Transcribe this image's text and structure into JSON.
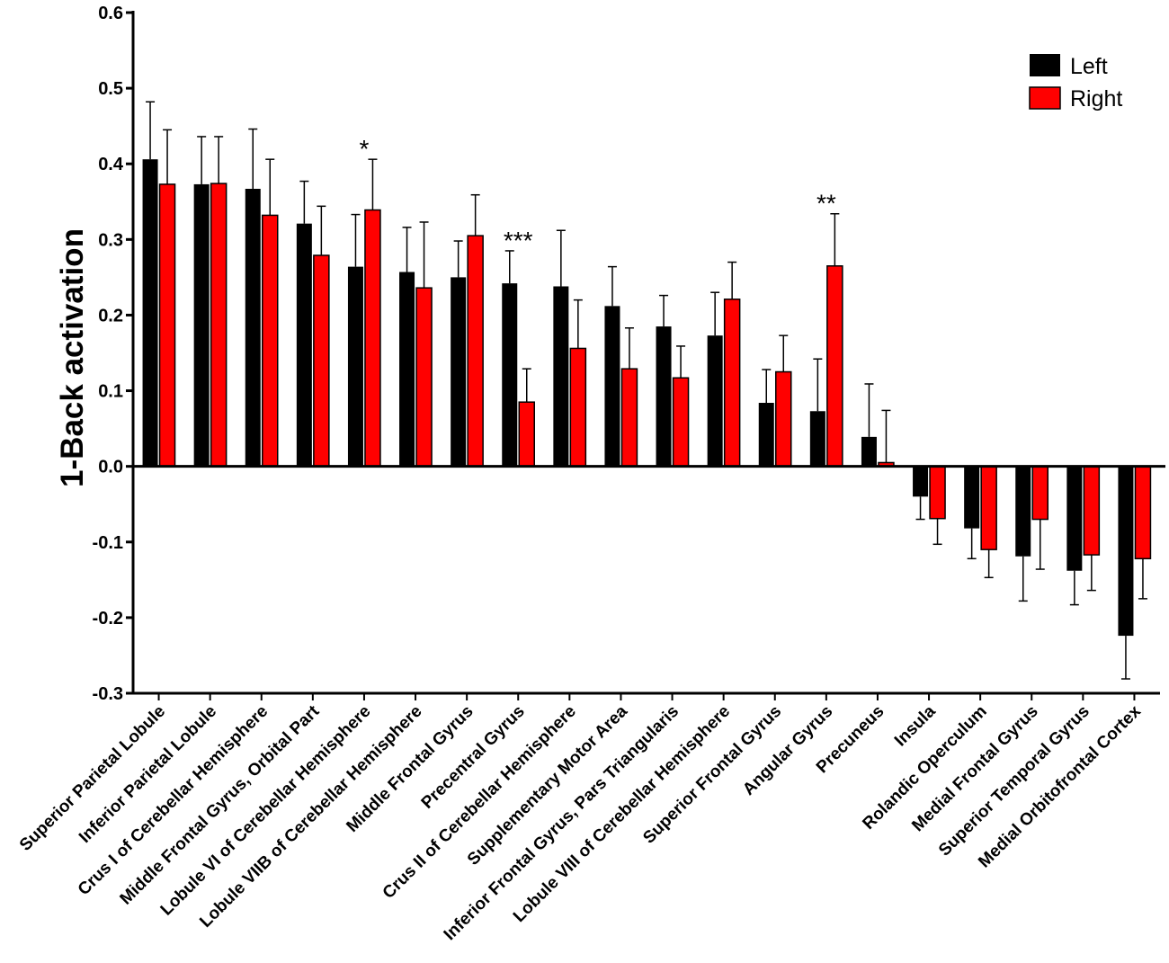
{
  "chart_data": {
    "type": "bar",
    "ylabel": "1-Back activation",
    "ylim": [
      -0.3,
      0.6
    ],
    "yticks": [
      "-0.3",
      "-0.2",
      "-0.1",
      "0.0",
      "0.1",
      "0.2",
      "0.3",
      "0.4",
      "0.5",
      "0.6"
    ],
    "legend_position": "top-right",
    "categories": [
      "Superior Parietal Lobule",
      "Inferior Parietal Lobule",
      "Crus I of Cerebellar Hemisphere",
      "Middle Frontal Gyrus, Orbital Part",
      "Lobule VI of Cerebellar Hemisphere",
      "Lobule VIIB of Cerebellar Hemisphere",
      "Middle Frontal Gyrus",
      "Precentral Gyrus",
      "Crus II of Cerebellar Hemisphere",
      "Supplementary Motor Area",
      "Inferior Frontal Gyrus, Pars Triangularis",
      "Lobule VIII of Cerebellar Hemisphere",
      "Superior Frontal Gyrus",
      "Angular Gyrus",
      "Precuneus",
      "Insula",
      "Rolandic Operculum",
      "Medial Frontal Gyrus",
      "Superior Temporal Gyrus",
      "Medial Orbitofrontal Cortex"
    ],
    "series": [
      {
        "name": "Left",
        "color": "#000000",
        "values": [
          0.406,
          0.373,
          0.367,
          0.321,
          0.264,
          0.257,
          0.25,
          0.242,
          0.238,
          0.212,
          0.185,
          0.173,
          0.084,
          0.073,
          0.039,
          -0.04,
          -0.082,
          -0.119,
          -0.138,
          -0.224
        ],
        "errors": [
          0.076,
          0.063,
          0.079,
          0.056,
          0.069,
          0.059,
          0.048,
          0.043,
          0.074,
          0.052,
          0.041,
          0.057,
          0.044,
          0.069,
          0.07,
          0.03,
          0.04,
          0.059,
          0.045,
          0.057
        ]
      },
      {
        "name": "Right",
        "color": "#ff0000",
        "values": [
          0.373,
          0.374,
          0.332,
          0.279,
          0.339,
          0.236,
          0.305,
          0.085,
          0.156,
          0.129,
          0.117,
          0.221,
          0.125,
          0.265,
          0.005,
          -0.069,
          -0.11,
          -0.07,
          -0.117,
          -0.122
        ],
        "errors": [
          0.072,
          0.062,
          0.074,
          0.065,
          0.067,
          0.087,
          0.054,
          0.044,
          0.064,
          0.054,
          0.042,
          0.049,
          0.048,
          0.069,
          0.069,
          0.034,
          0.037,
          0.066,
          0.047,
          0.053
        ]
      }
    ],
    "annotations": [
      {
        "category": "Lobule VI of Cerebellar Hemisphere",
        "text": "*"
      },
      {
        "category": "Precentral Gyrus",
        "text": "***"
      },
      {
        "category": "Angular Gyrus",
        "text": "**"
      }
    ]
  }
}
